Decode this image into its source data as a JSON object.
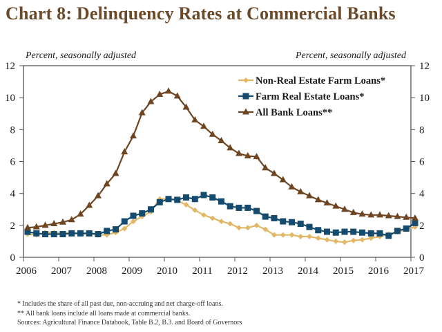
{
  "title": "Chart 8: Delinquency Rates at Commercial Banks",
  "footnotes": [
    "* Includes the share of  all past due, non-accruing and net charge-off loans.",
    "** All bank loans include all loans made at commercial banks.",
    "Sources: Agricultural Finance Databook, Table B.2, B.3. and Board of Governors"
  ],
  "chart_data": {
    "type": "line",
    "title": "Chart 8: Delinquency Rates at Commercial Banks",
    "ylabel_left": "Percent, seasonally adjusted",
    "ylabel_right": "Percent, seasonally adjusted",
    "xlabel": "",
    "x_ticks": [
      "2006",
      "2007",
      "2008",
      "2009",
      "2010",
      "2011",
      "2012",
      "2013",
      "2014",
      "2015",
      "2016",
      "2017"
    ],
    "xlim": [
      2006,
      2017
    ],
    "ylim": [
      0,
      12
    ],
    "y_ticks": [
      0,
      2,
      4,
      6,
      8,
      10,
      12
    ],
    "grid": false,
    "legend_position": "top-right",
    "frequency": "quarterly",
    "x": [
      2006.0,
      2006.25,
      2006.5,
      2006.75,
      2007.0,
      2007.25,
      2007.5,
      2007.75,
      2008.0,
      2008.25,
      2008.5,
      2008.75,
      2009.0,
      2009.25,
      2009.5,
      2009.75,
      2010.0,
      2010.25,
      2010.5,
      2010.75,
      2011.0,
      2011.25,
      2011.5,
      2011.75,
      2012.0,
      2012.25,
      2012.5,
      2012.75,
      2013.0,
      2013.25,
      2013.5,
      2013.75,
      2014.0,
      2014.25,
      2014.5,
      2014.75,
      2015.0,
      2015.25,
      2015.5,
      2015.75,
      2016.0,
      2016.25,
      2016.5,
      2016.75,
      2017.0
    ],
    "series": [
      {
        "name": "Non-Real Estate Farm Loans*",
        "color": "#e2b866",
        "marker": "diamond",
        "values": [
          1.45,
          1.4,
          1.55,
          1.55,
          1.5,
          1.55,
          1.45,
          1.5,
          1.4,
          1.4,
          1.55,
          1.8,
          2.25,
          2.55,
          2.85,
          3.65,
          3.65,
          3.55,
          3.3,
          2.95,
          2.65,
          2.45,
          2.25,
          2.1,
          1.85,
          1.85,
          2.0,
          1.75,
          1.4,
          1.4,
          1.4,
          1.3,
          1.3,
          1.2,
          1.1,
          1.0,
          0.95,
          1.05,
          1.1,
          1.2,
          1.3,
          1.45,
          1.6,
          1.75,
          1.9
        ]
      },
      {
        "name": "Farm Real Estate Loans*",
        "color": "#144b6e",
        "marker": "square",
        "values": [
          1.6,
          1.5,
          1.45,
          1.45,
          1.45,
          1.5,
          1.5,
          1.5,
          1.45,
          1.65,
          1.75,
          2.25,
          2.6,
          2.75,
          3.0,
          3.45,
          3.65,
          3.6,
          3.75,
          3.65,
          3.9,
          3.75,
          3.5,
          3.2,
          3.1,
          3.1,
          2.9,
          2.55,
          2.45,
          2.25,
          2.2,
          2.1,
          1.9,
          1.7,
          1.6,
          1.55,
          1.6,
          1.6,
          1.55,
          1.5,
          1.5,
          1.35,
          1.65,
          1.8,
          2.15
        ]
      },
      {
        "name": "All Bank Loans**",
        "color": "#6e4520",
        "marker": "triangle",
        "values": [
          1.85,
          1.9,
          2.0,
          2.1,
          2.2,
          2.35,
          2.7,
          3.25,
          3.85,
          4.6,
          5.25,
          6.6,
          7.6,
          9.05,
          9.75,
          10.2,
          10.4,
          10.1,
          9.4,
          8.6,
          8.2,
          7.7,
          7.3,
          6.85,
          6.5,
          6.35,
          6.3,
          5.6,
          5.25,
          4.85,
          4.4,
          4.1,
          3.85,
          3.6,
          3.4,
          3.2,
          3.0,
          2.8,
          2.7,
          2.65,
          2.65,
          2.6,
          2.55,
          2.5,
          2.45
        ]
      }
    ]
  }
}
